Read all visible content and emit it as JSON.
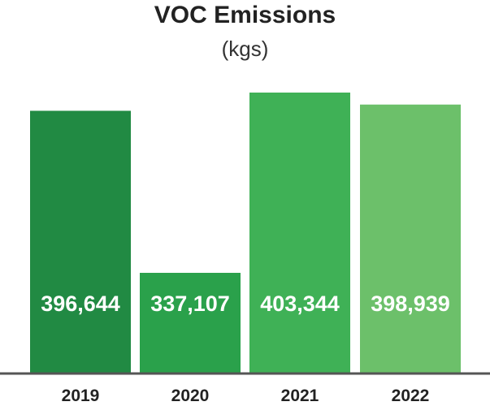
{
  "chart_data": {
    "type": "bar",
    "title": "VOC Emissions",
    "subtitle": "(kgs)",
    "xlabel": "",
    "ylabel": "",
    "categories": [
      "2019",
      "2020",
      "2021",
      "2022"
    ],
    "values": [
      396644,
      337107,
      403344,
      398939
    ],
    "value_labels": [
      "396,644",
      "337,107",
      "403,344",
      "398,939"
    ],
    "colors": [
      "#218a43",
      "#2aa14b",
      "#3fb156",
      "#6cc06a"
    ],
    "axis_color": "#555555",
    "grid": false,
    "legend": "none"
  }
}
